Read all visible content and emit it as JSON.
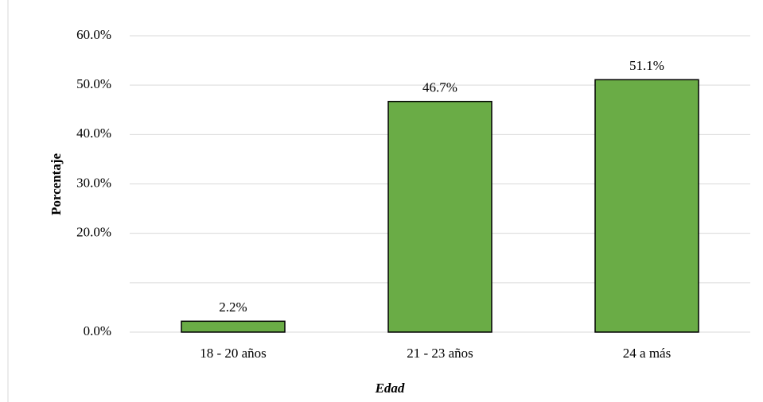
{
  "chart_data": {
    "type": "bar",
    "categories": [
      "18 - 20 años",
      "21 - 23 años",
      "24 a más"
    ],
    "values": [
      2.2,
      46.7,
      51.1
    ],
    "value_labels": [
      "2.2%",
      "46.7%",
      "51.1%"
    ],
    "color": "#6aac46",
    "ylim": [
      0,
      60
    ],
    "yticks": [
      {
        "value": 0,
        "label": "0.0%"
      },
      {
        "value": 20,
        "label": "20.0%"
      },
      {
        "value": 30,
        "label": "30.0%"
      },
      {
        "value": 40,
        "label": "40.0%"
      },
      {
        "value": 50,
        "label": "50.0%"
      },
      {
        "value": 60,
        "label": "60.0%"
      }
    ],
    "ygrid": [
      0,
      10,
      20,
      30,
      40,
      50,
      60
    ],
    "grid": true,
    "ylabel": "Porcentaje",
    "xlabel": "Edad"
  }
}
